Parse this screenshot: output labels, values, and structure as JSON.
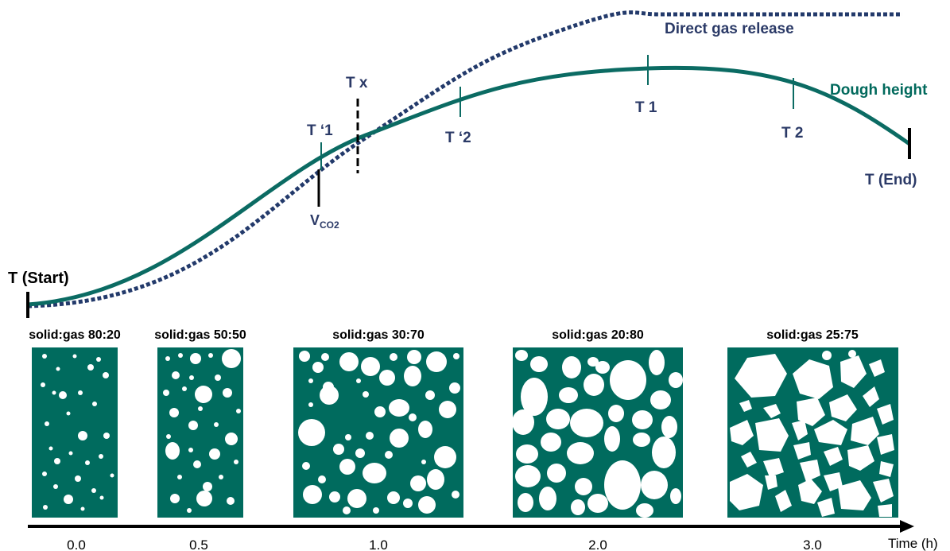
{
  "colors": {
    "dough_curve": "#0b6b63",
    "gas_curve": "#233a6b",
    "panel_fill": "#006b5e",
    "bubble": "#ffffff",
    "label_navy": "#2b3a67",
    "label_teal": "#00695c"
  },
  "curves": {
    "gas_label": "Direct gas release",
    "dough_label": "Dough height"
  },
  "markers": {
    "t_start": "T (Start)",
    "t_end": "T (End)",
    "t_prime_1": "T ‘1",
    "t_prime_2": "T ‘2",
    "t_x": "T x",
    "t_1": "T 1",
    "t_2": "T 2",
    "v_co2_main": "V",
    "v_co2_sub": "CO2"
  },
  "panels": [
    {
      "ratio": "solid:gas 80:20"
    },
    {
      "ratio": "solid:gas 50:50"
    },
    {
      "ratio": "solid:gas 30:70"
    },
    {
      "ratio": "solid:gas 20:80"
    },
    {
      "ratio": "solid:gas 25:75"
    }
  ],
  "time_axis": {
    "label": "Time (h)",
    "ticks": [
      "0.0",
      "0.5",
      "1.0",
      "2.0",
      "3.0"
    ]
  }
}
